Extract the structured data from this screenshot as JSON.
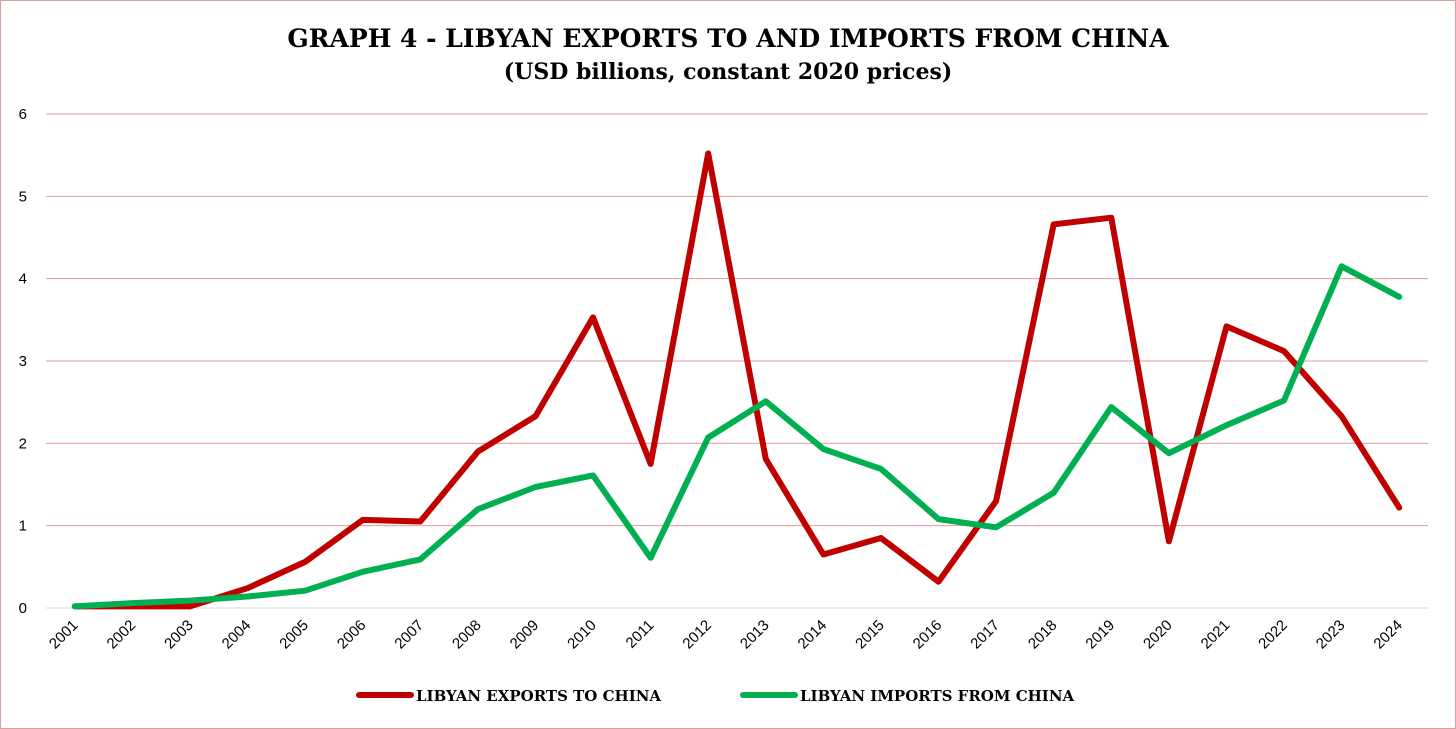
{
  "chart_data": {
    "type": "line",
    "title": "GRAPH 4 - LIBYAN EXPORTS TO AND IMPORTS FROM CHINA",
    "subtitle": "(USD billions, constant 2020 prices)",
    "xlabel": "",
    "ylabel": "",
    "ylim": [
      0,
      6
    ],
    "yticks": [
      "0",
      "1",
      "2",
      "3",
      "4",
      "5",
      "6"
    ],
    "grid": true,
    "legend_position": "bottom",
    "categories": [
      "2001",
      "2002",
      "2003",
      "2004",
      "2005",
      "2006",
      "2007",
      "2008",
      "2009",
      "2010",
      "2011",
      "2012",
      "2013",
      "2014",
      "2015",
      "2016",
      "2017",
      "2018",
      "2019",
      "2020",
      "2021",
      "2022",
      "2023",
      "2024"
    ],
    "series": [
      {
        "name": "LIBYAN EXPORTS TO CHINA",
        "color": "#c00000",
        "values": [
          0.02,
          0.02,
          0.02,
          0.24,
          0.56,
          1.07,
          1.05,
          1.9,
          2.33,
          3.53,
          1.75,
          5.52,
          1.81,
          0.65,
          0.85,
          0.32,
          1.3,
          4.66,
          4.74,
          0.81,
          3.42,
          3.12,
          2.33,
          1.22
        ]
      },
      {
        "name": "LIBYAN IMPORTS FROM CHINA",
        "color": "#00b050",
        "values": [
          0.02,
          0.06,
          0.09,
          0.14,
          0.21,
          0.44,
          0.59,
          1.2,
          1.47,
          1.61,
          0.61,
          2.07,
          2.51,
          1.93,
          1.69,
          1.08,
          0.98,
          1.4,
          2.44,
          1.88,
          2.22,
          2.52,
          4.15,
          3.78
        ]
      }
    ]
  }
}
